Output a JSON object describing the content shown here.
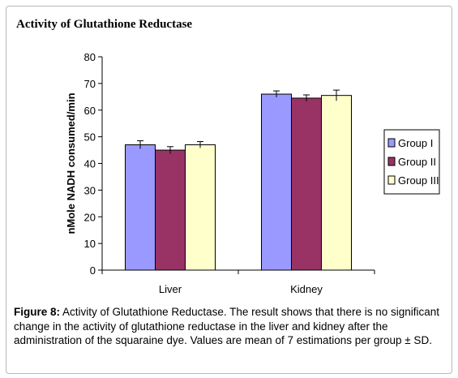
{
  "chart_data": {
    "type": "bar",
    "title": "Activity of Glutathione Reductase",
    "ylabel": "nMole NADH consumed/min",
    "xlabel": "",
    "ylim": [
      0,
      80
    ],
    "yticks": [
      0,
      10,
      20,
      30,
      40,
      50,
      60,
      70,
      80
    ],
    "categories": [
      "Liver",
      "Kidney"
    ],
    "series": [
      {
        "name": "Group I",
        "color": "#9999ff",
        "values": [
          47,
          66
        ],
        "errors": [
          1.5,
          1.2
        ]
      },
      {
        "name": "Group II",
        "color": "#993366",
        "values": [
          45,
          64.5
        ],
        "errors": [
          1.3,
          1.2
        ]
      },
      {
        "name": "Group III",
        "color": "#ffffcc",
        "values": [
          47,
          65.5
        ],
        "errors": [
          1.2,
          2.0
        ]
      }
    ],
    "legend_position": "right",
    "grid": false
  },
  "caption": {
    "label": "Figure 8:",
    "text": " Activity of Glutathione Reductase. The result shows that there is no significant change in the activity of glutathione reductase in the liver and kidney after the administration of the squaraine dye. Values are mean of 7 estimations per group ± SD."
  }
}
